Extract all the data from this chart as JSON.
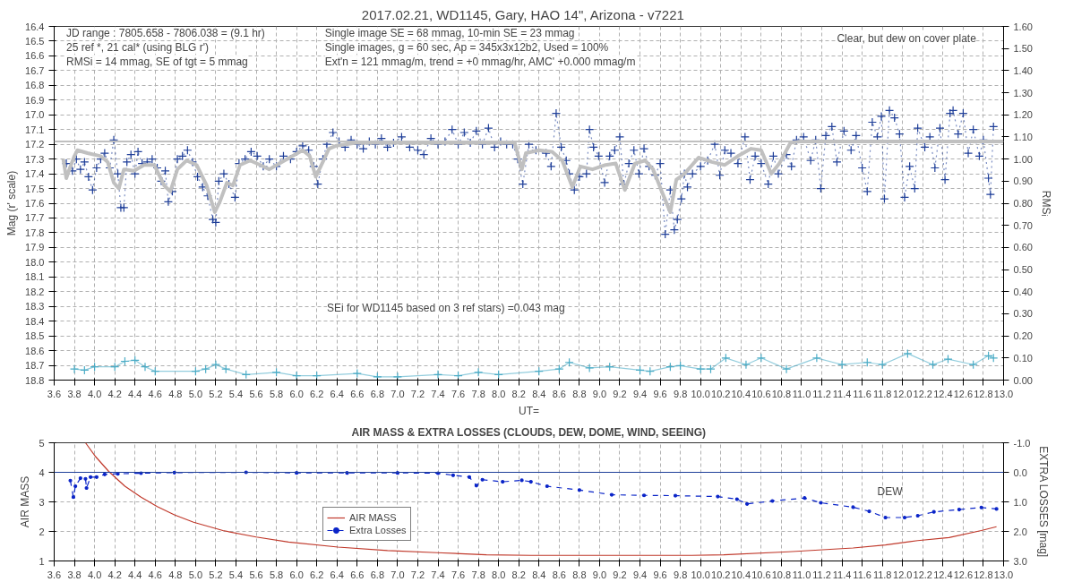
{
  "chart_data": [
    {
      "type": "line",
      "title": "2017.02.21,  WD1145, Gary, HAO  14\",  Arizona - v7221",
      "xlabel": "UT=",
      "ylabel": "Mag (r' scale)",
      "y2label": "RMSᵢ",
      "annotations": [
        "JD range  : 7805.658 - 7806.038  = (9.1 hr)",
        "25 ref *, 21 cal* (using BLG r')",
        "RMSi = 14 mmag, SE of tgt = 5 mmag",
        "Single image SE = 68 mmag, 10-min SE = 23 mmag",
        "Single images, g = 60 sec, Ap = 345x3x12b2, Used = 100%",
        "Ext'n = 121 mmag/m, trend = +0 mmag/hr, AMC' +0.000 mmag/m",
        "Clear, but dew on cover plate",
        "SEi for WD1145 based on 3 ref stars) =0.043 mag"
      ],
      "xlim": [
        3.6,
        13.0
      ],
      "ylim": [
        18.8,
        16.4
      ],
      "y2lim": [
        0,
        1.6
      ],
      "xticks": [
        3.6,
        3.8,
        {
          "value": 4,
          "label": "4.0"
        },
        4.2,
        4.4,
        4.6,
        4.8,
        {
          "value": 5,
          "label": "5.0"
        },
        5.2,
        5.4,
        5.6,
        5.8,
        {
          "value": 6,
          "label": "6.0"
        },
        6.2,
        6.4,
        6.6,
        6.8,
        {
          "value": 7,
          "label": "7.0"
        },
        7.2,
        7.4,
        7.6,
        7.8,
        {
          "value": 8,
          "label": "8.0"
        },
        8.2,
        8.4,
        8.6,
        8.8,
        {
          "value": 9,
          "label": "9.0"
        },
        9.2,
        9.4,
        9.6,
        9.8,
        {
          "value": 10,
          "label": "10.0"
        },
        10.2,
        10.4,
        10.6,
        10.8,
        {
          "value": 11,
          "label": "11.0"
        },
        11.2,
        11.4,
        11.6,
        11.8,
        {
          "value": 12,
          "label": "12.0"
        },
        12.2,
        12.4,
        12.6,
        12.8,
        {
          "value": 13,
          "label": "13.0"
        }
      ],
      "yticks": [
        16.4,
        16.5,
        16.6,
        16.7,
        16.8,
        16.9,
        {
          "value": 17,
          "label": "17.0"
        },
        17.1,
        17.2,
        17.3,
        17.4,
        17.5,
        17.6,
        17.7,
        17.8,
        17.9,
        {
          "value": 18,
          "label": "18.0"
        },
        18.1,
        18.2,
        18.3,
        18.4,
        18.5,
        18.6,
        18.7,
        18.8
      ],
      "y2ticks": [
        {
          "value": 0,
          "label": "0.00"
        },
        {
          "value": 0.1,
          "label": "0.10"
        },
        {
          "value": 0.2,
          "label": "0.20"
        },
        {
          "value": 0.3,
          "label": "0.30"
        },
        {
          "value": 0.4,
          "label": "0.40"
        },
        {
          "value": 0.5,
          "label": "0.50"
        },
        {
          "value": 0.6,
          "label": "0.60"
        },
        {
          "value": 0.7,
          "label": "0.70"
        },
        {
          "value": 0.8,
          "label": "0.80"
        },
        {
          "value": 0.9,
          "label": "0.90"
        },
        {
          "value": 1,
          "label": "1.00"
        },
        {
          "value": 1.1,
          "label": "1.10"
        },
        {
          "value": 1.2,
          "label": "1.20"
        },
        {
          "value": 1.3,
          "label": "1.30"
        },
        {
          "value": 1.4,
          "label": "1.40"
        },
        {
          "value": 1.5,
          "label": "1.50"
        },
        {
          "value": 1.6,
          "label": "1.60"
        }
      ],
      "grid": true,
      "ref_lines": [
        {
          "axis": "y",
          "value": 17.18,
          "color": "#c0c0c0"
        }
      ],
      "series": [
        {
          "color": "#1f3f99",
          "marker": "cross",
          "line_style": "dotted",
          "x": [
            3.72,
            3.78,
            3.82,
            3.86,
            3.9,
            3.94,
            3.98,
            4.02,
            4.06,
            4.1,
            4.15,
            4.19,
            4.23,
            4.26,
            4.29,
            4.32,
            4.36,
            4.4,
            4.43,
            4.47,
            4.52,
            4.57,
            4.62,
            4.66,
            4.7,
            4.73,
            4.77,
            4.82,
            4.87,
            4.92,
            4.97,
            5.02,
            5.07,
            5.12,
            5.17,
            5.2,
            5.23,
            5.28,
            5.33,
            5.39,
            5.43,
            5.49,
            5.55,
            5.61,
            5.67,
            5.73,
            5.8,
            5.87,
            5.94,
            6.0,
            6.06,
            6.12,
            6.17,
            6.21,
            6.26,
            6.3,
            6.36,
            6.42,
            6.48,
            6.54,
            6.6,
            6.66,
            6.72,
            6.78,
            6.84,
            6.9,
            6.96,
            7.04,
            7.12,
            7.2,
            7.26,
            7.33,
            7.4,
            7.47,
            7.54,
            7.6,
            7.66,
            7.72,
            7.78,
            7.84,
            7.9,
            7.96,
            8.02,
            8.08,
            8.14,
            8.19,
            8.24,
            8.3,
            8.37,
            8.47,
            8.52,
            8.57,
            8.62,
            8.67,
            8.7,
            8.75,
            8.8,
            8.87,
            8.9,
            8.94,
            8.99,
            9.05,
            9.1,
            9.15,
            9.2,
            9.24,
            9.29,
            9.34,
            9.39,
            9.44,
            9.49,
            9.55,
            9.6,
            9.65,
            9.7,
            9.74,
            9.77,
            9.81,
            9.84,
            9.87,
            9.92,
            10.0,
            10.07,
            10.14,
            10.19,
            10.24,
            10.3,
            10.37,
            10.44,
            10.49,
            10.54,
            10.6,
            10.67,
            10.72,
            10.77,
            10.85,
            10.9,
            10.95,
            11.02,
            11.09,
            11.14,
            11.19,
            11.24,
            11.3,
            11.35,
            11.42,
            11.49,
            11.54,
            11.6,
            11.65,
            11.7,
            11.75,
            11.79,
            11.82,
            11.87,
            11.92,
            11.97,
            12.02,
            12.07,
            12.12,
            12.15,
            12.22,
            12.27,
            12.32,
            12.37,
            12.42,
            12.47,
            12.5,
            12.55,
            12.6,
            12.65,
            12.7,
            12.76,
            12.8,
            12.85,
            12.87,
            12.9
          ],
          "values": [
            17.33,
            17.38,
            17.3,
            17.37,
            17.32,
            17.42,
            17.51,
            17.36,
            17.3,
            17.26,
            17.36,
            17.17,
            17.4,
            17.63,
            17.63,
            17.32,
            17.27,
            17.4,
            17.25,
            17.33,
            17.32,
            17.3,
            17.36,
            17.45,
            17.38,
            17.59,
            17.52,
            17.3,
            17.28,
            17.24,
            17.32,
            17.42,
            17.49,
            17.55,
            17.71,
            17.73,
            17.45,
            17.4,
            17.47,
            17.56,
            17.33,
            17.3,
            17.25,
            17.28,
            17.35,
            17.3,
            17.35,
            17.28,
            17.3,
            17.25,
            17.21,
            17.24,
            17.35,
            17.47,
            17.3,
            17.2,
            17.12,
            17.18,
            17.22,
            17.17,
            17.2,
            17.23,
            17.18,
            17.2,
            17.16,
            17.22,
            17.19,
            17.15,
            17.22,
            17.24,
            17.27,
            17.16,
            17.2,
            17.18,
            17.1,
            17.2,
            17.12,
            17.19,
            17.11,
            17.2,
            17.09,
            17.22,
            17.18,
            17.2,
            17.2,
            17.3,
            17.47,
            17.2,
            17.24,
            17.26,
            17.35,
            16.99,
            17.22,
            17.31,
            17.4,
            17.51,
            17.42,
            17.4,
            17.1,
            17.22,
            17.28,
            17.46,
            17.28,
            17.24,
            17.15,
            17.47,
            17.33,
            17.24,
            17.4,
            17.23,
            17.35,
            17.41,
            17.33,
            17.81,
            17.51,
            17.78,
            17.71,
            17.57,
            17.4,
            17.49,
            17.4,
            17.35,
            17.31,
            17.2,
            17.41,
            17.24,
            17.26,
            17.33,
            17.15,
            17.44,
            17.28,
            17.33,
            17.47,
            17.28,
            17.4,
            17.27,
            17.35,
            17.17,
            17.15,
            17.31,
            17.17,
            17.5,
            17.14,
            17.08,
            17.32,
            17.11,
            17.24,
            17.14,
            17.36,
            17.52,
            17.05,
            17.15,
            17.01,
            17.57,
            16.97,
            17.02,
            17.13,
            17.56,
            17.35,
            17.5,
            17.09,
            17.22,
            17.15,
            17.36,
            17.09,
            17.44,
            16.99,
            16.97,
            17.13,
            16.99,
            17.26,
            17.1,
            17.28,
            17.17,
            17.43,
            17.54,
            17.08
          ]
        },
        {
          "color": "#c0c0c0",
          "marker": "none",
          "line_style": "solid",
          "x": [
            3.69,
            3.72,
            3.75,
            3.8,
            3.83,
            3.93,
            4.06,
            4.13,
            4.19,
            4.24,
            4.29,
            4.39,
            4.49,
            4.59,
            4.69,
            4.75,
            4.82,
            4.91,
            5.01,
            5.11,
            5.19,
            5.24,
            5.31,
            5.37,
            5.44,
            5.54,
            5.64,
            5.73,
            5.83,
            5.96,
            6.06,
            6.13,
            6.19,
            6.26,
            6.32,
            6.39,
            6.59,
            8.16,
            8.23,
            8.27,
            8.4,
            8.53,
            8.63,
            8.73,
            8.81,
            8.93,
            9.06,
            9.16,
            9.25,
            9.35,
            9.45,
            9.53,
            9.61,
            9.7,
            9.76,
            9.84,
            9.98,
            10.11,
            10.24,
            10.37,
            10.5,
            10.6,
            10.7,
            10.78,
            10.89,
            10.99,
            13.0
          ],
          "values": [
            17.3,
            17.43,
            17.37,
            17.28,
            17.24,
            17.26,
            17.28,
            17.32,
            17.46,
            17.5,
            17.37,
            17.38,
            17.34,
            17.34,
            17.48,
            17.52,
            17.37,
            17.31,
            17.34,
            17.48,
            17.66,
            17.59,
            17.46,
            17.48,
            17.34,
            17.31,
            17.34,
            17.37,
            17.33,
            17.28,
            17.24,
            17.28,
            17.42,
            17.32,
            17.23,
            17.21,
            17.19,
            17.19,
            17.37,
            17.26,
            17.24,
            17.25,
            17.31,
            17.49,
            17.35,
            17.37,
            17.34,
            17.33,
            17.51,
            17.33,
            17.31,
            17.37,
            17.51,
            17.66,
            17.44,
            17.4,
            17.29,
            17.32,
            17.34,
            17.28,
            17.23,
            17.24,
            17.4,
            17.33,
            17.19,
            17.18,
            17.18
          ]
        },
        {
          "axis": "y2",
          "color": "#4bacc6",
          "marker": "cross",
          "line_style": "solid",
          "x": [
            3.8,
            3.9,
            4.0,
            4.2,
            4.3,
            4.4,
            4.5,
            4.6,
            5.0,
            5.1,
            5.2,
            5.3,
            5.5,
            5.8,
            6.0,
            6.2,
            6.6,
            6.8,
            7.0,
            7.4,
            7.6,
            7.8,
            8.0,
            8.4,
            8.6,
            8.7,
            8.9,
            9.1,
            9.4,
            9.5,
            9.7,
            9.8,
            10.0,
            10.1,
            10.25,
            10.45,
            10.6,
            10.85,
            11.15,
            11.4,
            11.65,
            11.8,
            12.05,
            12.3,
            12.45,
            12.7,
            12.85,
            12.9
          ],
          "values": [
            0.05,
            0.045,
            0.06,
            0.06,
            0.085,
            0.09,
            0.06,
            0.04,
            0.04,
            0.05,
            0.07,
            0.05,
            0.025,
            0.035,
            0.02,
            0.02,
            0.03,
            0.015,
            0.015,
            0.025,
            0.02,
            0.035,
            0.025,
            0.04,
            0.05,
            0.08,
            0.055,
            0.06,
            0.045,
            0.04,
            0.06,
            0.065,
            0.05,
            0.05,
            0.1,
            0.07,
            0.1,
            0.05,
            0.1,
            0.07,
            0.08,
            0.07,
            0.12,
            0.07,
            0.095,
            0.07,
            0.11,
            0.1
          ]
        }
      ]
    },
    {
      "type": "line",
      "title": "AIR MASS & EXTRA LOSSES (CLOUDS, DEW, DOME, WIND, SEEING)",
      "ylabel": "AIR MASS",
      "y2label": "EXTRA LOSSES [mag]",
      "annotations": [
        "DEW"
      ],
      "xlim": [
        3.6,
        13.0
      ],
      "ylim": [
        1,
        5
      ],
      "y2lim": [
        3.0,
        -1.0
      ],
      "xticks": [
        3.6,
        3.8,
        {
          "value": 4,
          "label": "4.0"
        },
        4.2,
        4.4,
        4.6,
        4.8,
        {
          "value": 5,
          "label": "5.0"
        },
        5.2,
        5.4,
        5.6,
        5.8,
        {
          "value": 6,
          "label": "6.0"
        },
        6.2,
        6.4,
        6.6,
        6.8,
        {
          "value": 7,
          "label": "7.0"
        },
        7.2,
        7.4,
        7.6,
        7.8,
        {
          "value": 8,
          "label": "8.0"
        },
        8.2,
        8.4,
        8.6,
        8.8,
        {
          "value": 9,
          "label": "9.0"
        },
        9.2,
        9.4,
        9.6,
        9.8,
        {
          "value": 10,
          "label": "10.0"
        },
        10.2,
        10.4,
        10.6,
        10.8,
        {
          "value": 11,
          "label": "11.0"
        },
        11.2,
        11.4,
        11.6,
        11.8,
        {
          "value": 12,
          "label": "12.0"
        },
        12.2,
        12.4,
        12.6,
        12.8,
        {
          "value": 13,
          "label": "13.0"
        }
      ],
      "yticks": [
        1,
        2,
        3,
        4,
        5
      ],
      "y2ticks": [
        {
          "value": -1,
          "label": "-1.0"
        },
        {
          "value": 0,
          "label": "0.0"
        },
        {
          "value": 1,
          "label": "1.0"
        },
        {
          "value": 2,
          "label": "2.0"
        },
        {
          "value": 3,
          "label": "3.0"
        }
      ],
      "grid": true,
      "legend": "center left",
      "ref_lines": [
        {
          "axis": "y2",
          "value": 0,
          "color": "#1f3f99"
        }
      ],
      "series": [
        {
          "name": "AIR MASS",
          "color": "#c0392b",
          "marker": "none",
          "line_style": "solid",
          "x": [
            3.91,
            4.01,
            4.14,
            4.3,
            4.46,
            4.62,
            4.79,
            4.98,
            5.27,
            5.6,
            5.92,
            6.41,
            6.9,
            7.39,
            7.88,
            8.32,
            9.91,
            10.23,
            10.87,
            11.51,
            11.83,
            12.15,
            12.46,
            12.78,
            12.93
          ],
          "values": [
            5.0,
            4.53,
            4.03,
            3.53,
            3.16,
            2.84,
            2.56,
            2.31,
            2.03,
            1.81,
            1.64,
            1.47,
            1.35,
            1.28,
            1.21,
            1.19,
            1.19,
            1.21,
            1.31,
            1.44,
            1.54,
            1.69,
            1.79,
            2.03,
            2.16
          ]
        },
        {
          "name": "Extra Losses",
          "axis": "y2",
          "color": "#0a24c8",
          "marker": "circle",
          "line_style": "dashed",
          "x": [
            3.76,
            3.79,
            3.81,
            3.86,
            3.91,
            3.92,
            3.96,
            4.02,
            4.1,
            4.23,
            4.46,
            4.79,
            5.5,
            6.0,
            6.5,
            7.0,
            7.4,
            7.55,
            7.71,
            7.78,
            7.84,
            8.04,
            8.23,
            8.32,
            8.48,
            8.8,
            9.12,
            9.44,
            9.75,
            10.17,
            10.36,
            10.46,
            10.71,
            11.03,
            11.19,
            11.51,
            11.67,
            11.83,
            12.02,
            12.15,
            12.31,
            12.56,
            12.78,
            12.93
          ],
          "values": [
            0.28,
            0.84,
            0.47,
            0.2,
            0.22,
            0.53,
            0.16,
            0.16,
            0.07,
            0.05,
            0.03,
            0.01,
            0.0,
            0.02,
            0.02,
            0.02,
            0.03,
            0.1,
            0.16,
            0.45,
            0.25,
            0.32,
            0.27,
            0.32,
            0.47,
            0.6,
            0.76,
            0.78,
            0.79,
            0.82,
            0.91,
            1.07,
            0.97,
            0.87,
            1.03,
            1.18,
            1.32,
            1.53,
            1.53,
            1.47,
            1.34,
            1.26,
            1.19,
            1.24
          ]
        }
      ]
    }
  ]
}
